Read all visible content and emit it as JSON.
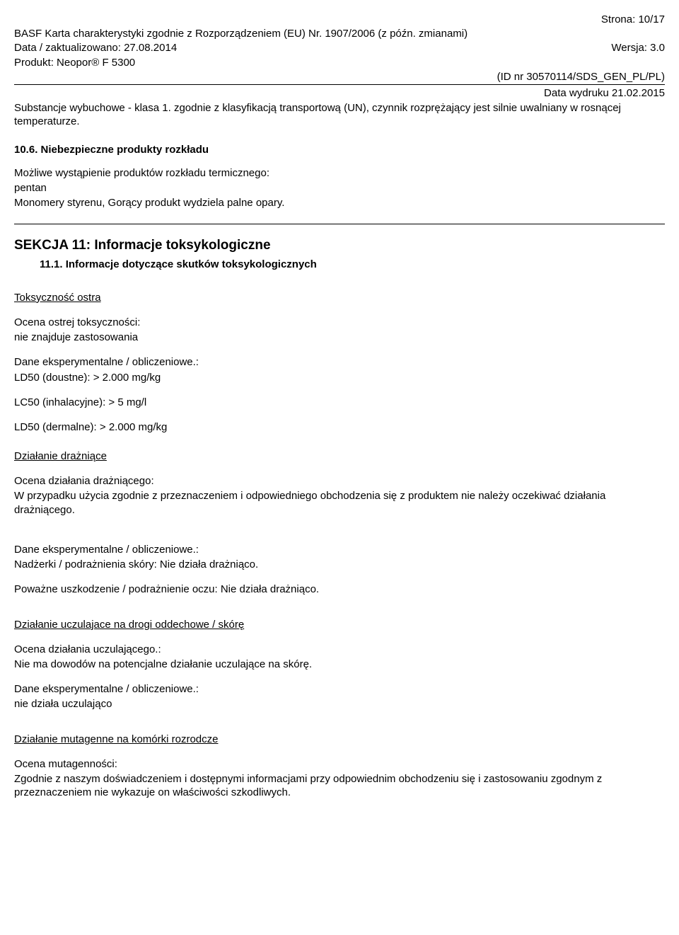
{
  "header": {
    "page_line": "Strona: 10/17",
    "title_line": "BASF Karta charakterystyki zgodnie z Rozporządzeniem (EU) Nr. 1907/2006 (z późn. zmianami)",
    "date_left": "Data / zaktualizowano: 27.08.2014",
    "version_right": "Wersja: 3.0",
    "product_line": "Produkt: Neopor® F 5300",
    "id_right": "(ID nr 30570114/SDS_GEN_PL/PL)",
    "print_date": "Data wydruku 21.02.2015"
  },
  "section10": {
    "explosive_line1": "Substancje wybuchowe - klasa 1. zgodnie z klasyfikacją transportową (UN), czynnik rozprężający jest silnie uwalniany w rosnącej temperaturze.",
    "heading_10_6": "10.6. Niebezpieczne produkty rozkładu",
    "decomp_intro": "Możliwe wystąpienie produktów rozkładu termicznego:",
    "decomp_line1": "pentan",
    "decomp_line2": "Monomery styrenu, Gorący produkt wydziela palne opary."
  },
  "section11": {
    "title": "SEKCJA 11: Informacje toksykologiczne",
    "sub_11_1": "11.1. Informacje dotyczące skutków toksykologicznych",
    "acute_heading": "Toksyczność ostra",
    "acute_assess_label": "Ocena ostrej toksyczności:",
    "acute_assess_value": "nie znajduje zastosowania",
    "exp_data_label": "Dane eksperymentalne / obliczeniowe.:",
    "ld50_oral": "LD50 (doustne): > 2.000 mg/kg",
    "lc50_inhal": "LC50 (inhalacyjne): > 5 mg/l",
    "ld50_dermal": "LD50 (dermalne): > 2.000 mg/kg",
    "irritation_heading": "Działanie drażniące",
    "irritation_assess_label": "Ocena działania drażniącego:",
    "irritation_assess_text": "W przypadku użycia zgodnie z przeznaczeniem i odpowiedniego obchodzenia się z produktem nie należy oczekiwać działania drażniącego.",
    "exp_data_label2": "Dane eksperymentalne / obliczeniowe.:",
    "skin_irr": "Nadżerki / podrażnienia skóry: Nie działa drażniąco.",
    "eye_irr": "Poważne uszkodzenie / podrażnienie oczu: Nie działa drażniąco.",
    "sens_heading": "Działanie uczulajace na drogi oddechowe / skórę",
    "sens_assess_label": "Ocena działania uczulającego.:",
    "sens_assess_text": "Nie ma dowodów na potencjalne działanie uczulające na skórę.",
    "exp_data_label3": "Dane eksperymentalne / obliczeniowe.:",
    "sens_value": "nie działa uczulająco",
    "mut_heading": "Działanie mutagenne na komórki rozrodcze",
    "mut_assess_label": "Ocena mutagenności:",
    "mut_assess_text": "Zgodnie z naszym doświadczeniem i dostępnymi informacjami przy odpowiednim obchodzeniu się i zastosowaniu zgodnym z przeznaczeniem nie wykazuje on właściwości szkodliwych."
  }
}
